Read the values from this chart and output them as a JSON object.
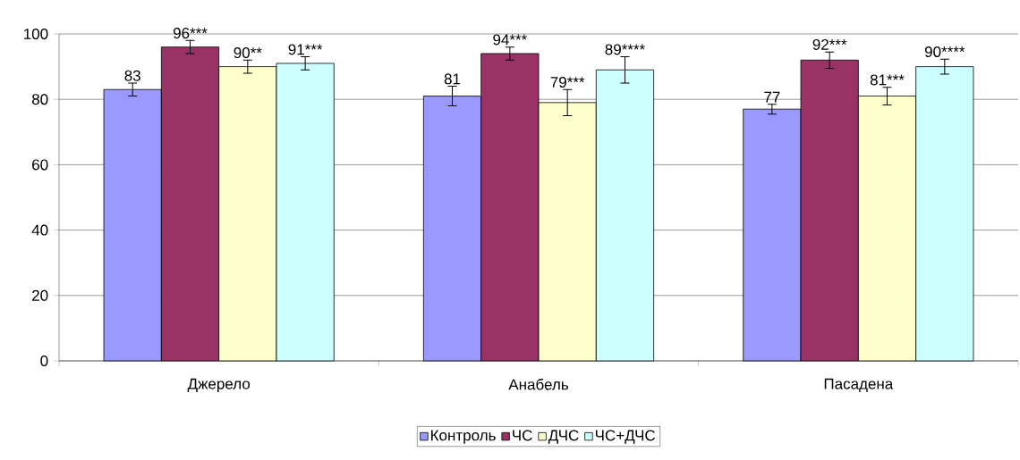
{
  "chart_data": {
    "type": "bar",
    "categories": [
      "Джерело",
      "Анабель",
      "Пасадена"
    ],
    "series": [
      {
        "name": "Контроль",
        "color": "#9999ff",
        "values": [
          83,
          81,
          77
        ],
        "errors": [
          2,
          3,
          1.5
        ],
        "value_labels": [
          "83",
          "81",
          "77"
        ]
      },
      {
        "name": "ЧС",
        "color": "#993366",
        "values": [
          96,
          94,
          92
        ],
        "errors": [
          2,
          2,
          2.5
        ],
        "value_labels": [
          "96***",
          "94***",
          "92***"
        ]
      },
      {
        "name": "ДЧС",
        "color": "#ffffcc",
        "values": [
          90,
          79,
          81
        ],
        "errors": [
          2,
          4,
          2.7
        ],
        "value_labels": [
          "90**",
          "79***",
          "81***"
        ]
      },
      {
        "name": "ЧС+ДЧС",
        "color": "#ccffff",
        "values": [
          91,
          89,
          90
        ],
        "errors": [
          2,
          4,
          2.3
        ],
        "value_labels": [
          "91***",
          "89****",
          "90****"
        ]
      }
    ],
    "ylim": [
      0,
      100
    ],
    "yticks": [
      0,
      20,
      40,
      60,
      80,
      100
    ],
    "grid": "y",
    "legend": "bottom"
  }
}
